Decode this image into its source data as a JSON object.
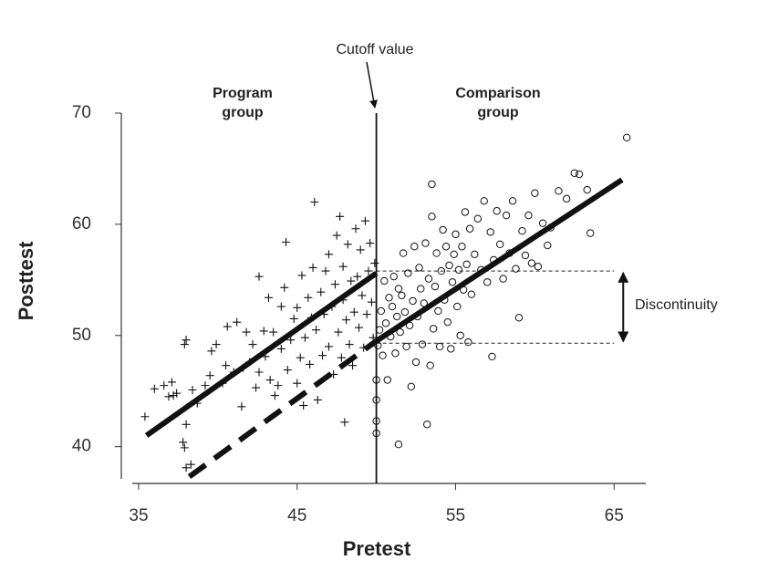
{
  "chart_data": {
    "type": "scatter",
    "xlabel": "Pretest",
    "ylabel": "Posttest",
    "xlim": [
      34.6,
      67
    ],
    "ylim": [
      37.1,
      70
    ],
    "xticks": [
      35,
      45,
      55,
      65
    ],
    "yticks": [
      40,
      50,
      60,
      70
    ],
    "color": "#111111",
    "series": [
      {
        "marker": "plus",
        "x": [
          35.4,
          36,
          36.6,
          36.9,
          37.1,
          37.2,
          37.4,
          37.8,
          37.9,
          37.9,
          38,
          38,
          38,
          38.3,
          38.4,
          38.7,
          39.2,
          39.5,
          39.6,
          39.9,
          40.3,
          40.5,
          40.6,
          41,
          41.2,
          41.5,
          41.6,
          41.8,
          42,
          42.2,
          42.4,
          42.6,
          42.6,
          42.9,
          43,
          43.2,
          43.3,
          43.5,
          43.6,
          43.8,
          44,
          44,
          44.2,
          44.3,
          44.4,
          44.6,
          44.8,
          45,
          45,
          45.2,
          45.3,
          45.4,
          45.5,
          45.7,
          45.8,
          45.9,
          46,
          46.1,
          46.2,
          46.3,
          46.5,
          46.6,
          46.7,
          46.8,
          47,
          47,
          47.2,
          47.3,
          47.4,
          47.5,
          47.6,
          47.7,
          47.8,
          47.9,
          47.9,
          48,
          48.1,
          48.2,
          48.3,
          48.4,
          48.5,
          48.6,
          48.7,
          48.8,
          48.9,
          49,
          49.1,
          49.2,
          49.3,
          49.4,
          49.5,
          49.6,
          49.7,
          49.8,
          49.9
        ],
        "y": [
          42.7,
          45.2,
          45.5,
          44.5,
          45.8,
          44.6,
          44.8,
          40.4,
          39.9,
          49.2,
          49.6,
          42,
          38.1,
          38.4,
          45.1,
          43.9,
          45.5,
          46.4,
          48.6,
          49.2,
          45.7,
          47.3,
          50.8,
          46.7,
          51.2,
          43.6,
          47.1,
          50.3,
          47.6,
          49.2,
          45.3,
          46.7,
          55.3,
          50.4,
          48.1,
          53.4,
          46,
          50.3,
          44.6,
          45.5,
          48.8,
          52.6,
          54.3,
          58.4,
          46.9,
          49.6,
          51.5,
          45.7,
          52.5,
          48,
          55.4,
          43.7,
          49.8,
          53.4,
          47.4,
          51.6,
          56.1,
          62,
          50.5,
          44.2,
          53.9,
          48.2,
          51.9,
          55.8,
          49,
          57.3,
          52.6,
          46.5,
          54.6,
          59,
          50.3,
          60.7,
          48,
          53.2,
          56.2,
          42.2,
          51.4,
          58.2,
          49.2,
          54.9,
          47.3,
          52.1,
          59.6,
          55.3,
          50.7,
          57.7,
          53.6,
          48.9,
          60.3,
          51.9,
          55.8,
          58.3,
          53,
          49.8,
          56.5
        ]
      },
      {
        "marker": "circle",
        "x": [
          50,
          50,
          50,
          50,
          50.1,
          50.2,
          50.3,
          50.4,
          50.5,
          50.6,
          50.7,
          50.8,
          50.9,
          51,
          51.1,
          51.2,
          51.3,
          51.4,
          51.5,
          51.6,
          51.7,
          51.8,
          51.9,
          52,
          52.1,
          52.2,
          52.3,
          52.4,
          52.5,
          52.6,
          52.7,
          52.8,
          52.9,
          53,
          53.1,
          53.2,
          53.3,
          53.4,
          53.5,
          53.5,
          53.6,
          53.7,
          53.8,
          53.9,
          54,
          54.1,
          54.2,
          54.3,
          54.4,
          54.5,
          54.6,
          54.7,
          54.8,
          54.9,
          55,
          55.1,
          55.2,
          55.3,
          55.4,
          55.5,
          55.6,
          55.7,
          55.8,
          55.9,
          56,
          56.2,
          56.4,
          56.6,
          56.8,
          57,
          57.2,
          57.3,
          57.4,
          57.6,
          57.8,
          58,
          58.2,
          58.4,
          58.6,
          58.8,
          59,
          59.2,
          59.4,
          59.6,
          59.8,
          60,
          60.2,
          60.5,
          60.8,
          61,
          61.5,
          62,
          62.5,
          62.8,
          63.3,
          63.5,
          65.8,
          51.4
        ],
        "y": [
          41.2,
          42.3,
          44.2,
          46,
          49.1,
          50.5,
          52.2,
          48.2,
          54.9,
          51.1,
          46,
          53.4,
          49.9,
          52.6,
          55.3,
          48.4,
          51.7,
          54.2,
          50.3,
          53.6,
          57.4,
          52.1,
          49,
          55.6,
          50.9,
          45.4,
          53.1,
          58,
          47.6,
          51.7,
          56.1,
          54.2,
          49.2,
          52.9,
          58.3,
          42,
          55.1,
          47.3,
          60.7,
          63.6,
          50.6,
          54.4,
          57.4,
          52.2,
          49,
          55.8,
          59.5,
          53.2,
          58,
          51.2,
          56.3,
          48.8,
          54.8,
          57.3,
          59.1,
          52.6,
          55.9,
          50,
          58,
          54.1,
          61.1,
          56.4,
          49.4,
          59.6,
          53.7,
          57.3,
          60.5,
          55.9,
          62.1,
          54.8,
          59.3,
          48.1,
          56.8,
          61.2,
          58.2,
          55.1,
          60.8,
          57.4,
          62.1,
          56,
          51.6,
          59.4,
          57.2,
          60.8,
          56.5,
          62.8,
          56.2,
          60.1,
          58.1,
          59.7,
          63,
          62.3,
          64.6,
          64.5,
          63.1,
          59.2,
          67.8,
          40.2
        ]
      }
    ],
    "fit_lines": [
      {
        "style": "solid",
        "x": [
          35.5,
          50
        ],
        "y": [
          41,
          55.6
        ]
      },
      {
        "style": "dashed",
        "x": [
          38.2,
          50
        ],
        "y": [
          37.3,
          49.5
        ]
      },
      {
        "style": "solid",
        "x": [
          50,
          65.5
        ],
        "y": [
          49.5,
          64
        ]
      }
    ],
    "cutoff": {
      "label": "Cutoff value",
      "x": 50
    },
    "group_labels": [
      "Program group",
      "Comparison group"
    ],
    "discontinuity": {
      "label": "Discontinuity",
      "upper": 55.8,
      "lower": 49.3,
      "x_end": 65
    }
  }
}
